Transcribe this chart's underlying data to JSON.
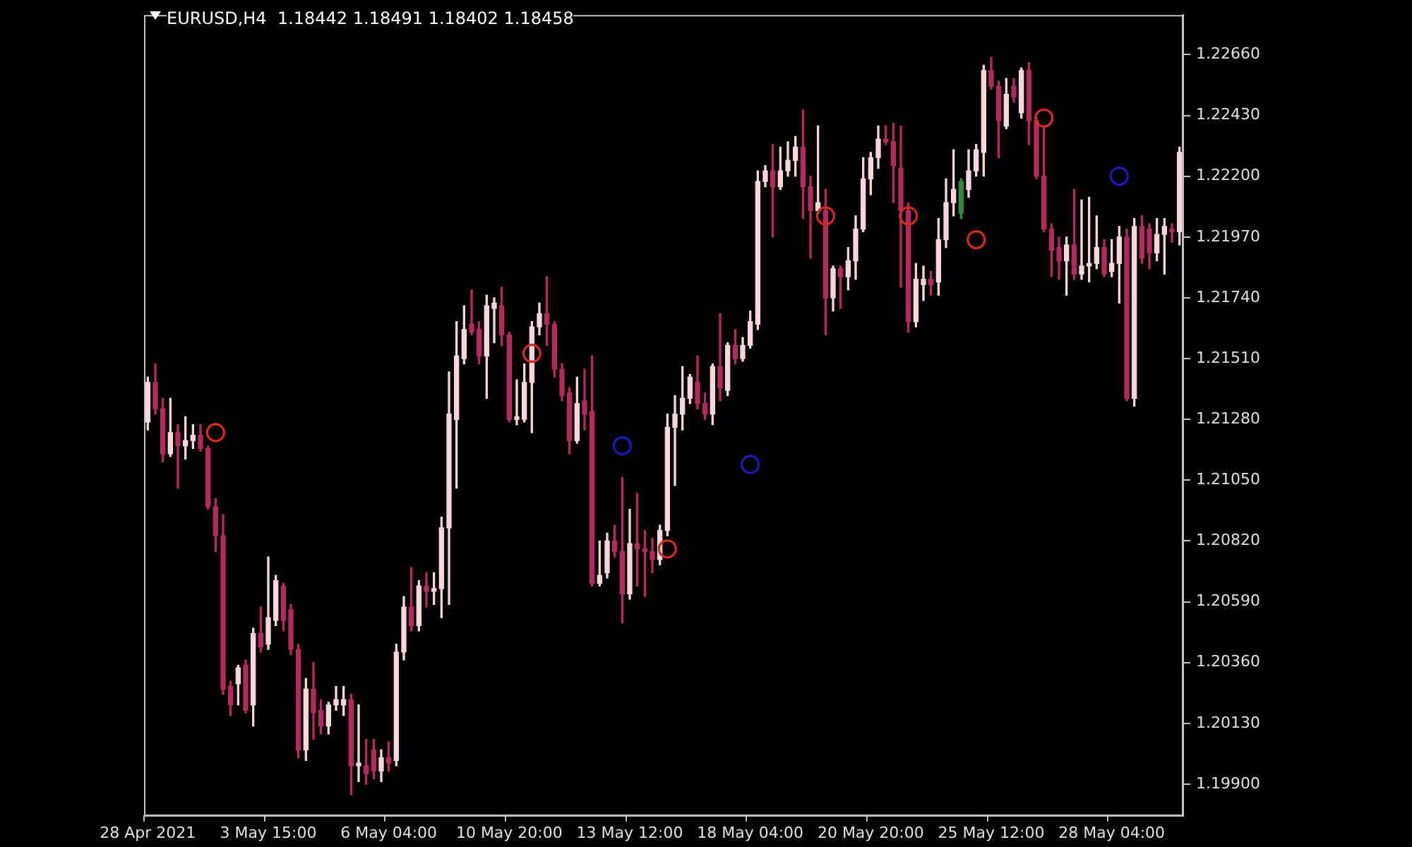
{
  "chart_data": {
    "type": "candlestick",
    "title": "EURUSD,H4  1.18442 1.18491 1.18402 1.18458",
    "categories": [
      "28 Apr 2021",
      null,
      null,
      null,
      null,
      null,
      null,
      null,
      null,
      null,
      null,
      null,
      null,
      null,
      null,
      null,
      "3 May 15:00",
      null,
      null,
      null,
      null,
      null,
      null,
      null,
      null,
      null,
      null,
      null,
      null,
      null,
      null,
      null,
      "6 May 04:00",
      null,
      null,
      null,
      null,
      null,
      null,
      null,
      null,
      null,
      null,
      null,
      null,
      null,
      null,
      null,
      "10 May 20:00",
      null,
      null,
      null,
      null,
      null,
      null,
      null,
      null,
      null,
      null,
      null,
      null,
      null,
      null,
      null,
      "13 May 12:00",
      null,
      null,
      null,
      null,
      null,
      null,
      null,
      null,
      null,
      null,
      null,
      null,
      null,
      null,
      null,
      "18 May 04:00",
      null,
      null,
      null,
      null,
      null,
      null,
      null,
      null,
      null,
      null,
      null,
      null,
      null,
      null,
      null,
      "20 May 20:00",
      null,
      null,
      null,
      null,
      null,
      null,
      null,
      null,
      null,
      null,
      null,
      null,
      null,
      null,
      null,
      "25 May 12:00",
      null,
      null,
      null,
      null,
      null,
      null,
      null,
      null,
      null,
      null,
      null,
      null,
      null,
      null,
      null,
      "28 May 04:00",
      null,
      null,
      null,
      null,
      null,
      null,
      null,
      null,
      null
    ],
    "ohlc": [
      [
        1.2127,
        1.2144,
        1.2124,
        1.2142
      ],
      [
        1.2142,
        1.2149,
        1.213,
        1.2132
      ],
      [
        1.2132,
        1.2136,
        1.2112,
        1.2115
      ],
      [
        1.2115,
        1.2136,
        1.2114,
        1.2123
      ],
      [
        1.2123,
        1.2126,
        1.2102,
        1.2118
      ],
      [
        1.2118,
        1.2129,
        1.2113,
        1.212
      ],
      [
        1.212,
        1.2126,
        1.2117,
        1.2122
      ],
      [
        1.2122,
        1.2126,
        1.2116,
        1.2117
      ],
      [
        1.2117,
        1.2118,
        1.2094,
        1.2095
      ],
      [
        1.2095,
        1.2098,
        1.2078,
        1.2084
      ],
      [
        1.2084,
        1.2092,
        1.2024,
        1.2026
      ],
      [
        1.2027,
        1.2029,
        1.2016,
        1.202
      ],
      [
        1.2028,
        1.2035,
        1.202,
        1.2034
      ],
      [
        1.2035,
        1.2037,
        1.2017,
        1.2018
      ],
      [
        1.202,
        1.2049,
        1.2012,
        1.2047
      ],
      [
        1.2047,
        1.2057,
        1.204,
        1.2042
      ],
      [
        1.2043,
        1.2076,
        1.2041,
        1.2053
      ],
      [
        1.2052,
        1.2069,
        1.205,
        1.2067
      ],
      [
        1.2065,
        1.2066,
        1.2048,
        1.2052
      ],
      [
        1.2056,
        1.2058,
        1.2039,
        1.2041
      ],
      [
        1.2041,
        1.2043,
        1.2,
        1.2003
      ],
      [
        1.2003,
        1.203,
        1.1999,
        1.2026
      ],
      [
        1.2026,
        1.2036,
        1.2007,
        1.2017
      ],
      [
        1.2018,
        1.2022,
        1.2009,
        1.2012
      ],
      [
        1.2012,
        1.2021,
        1.2009,
        1.202
      ],
      [
        1.202,
        1.2027,
        1.2018,
        1.2022
      ],
      [
        1.202,
        1.2027,
        1.2016,
        1.2022
      ],
      [
        1.2022,
        1.2024,
        1.1986,
        1.1997
      ],
      [
        1.1997,
        1.202,
        1.1991,
        1.1998
      ],
      [
        1.1997,
        1.2007,
        1.199,
        1.1994
      ],
      [
        1.2003,
        1.2007,
        1.1992,
        1.1995
      ],
      [
        1.1995,
        1.2003,
        1.1991,
        1.2
      ],
      [
        1.2,
        1.2006,
        1.1995,
        1.1998
      ],
      [
        1.1999,
        1.2043,
        1.1997,
        1.204
      ],
      [
        1.204,
        1.2061,
        1.2037,
        1.2057
      ],
      [
        1.2057,
        1.2072,
        1.2048,
        1.205
      ],
      [
        1.205,
        1.2067,
        1.2048,
        1.2065
      ],
      [
        1.2065,
        1.207,
        1.2057,
        1.2063
      ],
      [
        1.2063,
        1.207,
        1.2058,
        1.2064
      ],
      [
        1.2064,
        1.2091,
        1.2053,
        1.2087
      ],
      [
        1.2087,
        1.2146,
        1.2058,
        1.213
      ],
      [
        1.2128,
        1.2165,
        1.2102,
        1.2152
      ],
      [
        1.2151,
        1.2171,
        1.2149,
        1.2162
      ],
      [
        1.2164,
        1.2177,
        1.216,
        1.2161
      ],
      [
        1.2162,
        1.2165,
        1.2149,
        1.2152
      ],
      [
        1.2152,
        1.2175,
        1.2136,
        1.2171
      ],
      [
        1.217,
        1.2174,
        1.2157,
        1.2172
      ],
      [
        1.2171,
        1.2178,
        1.2156,
        1.216
      ],
      [
        1.216,
        1.2161,
        1.2127,
        1.2128
      ],
      [
        1.2128,
        1.2143,
        1.2126,
        1.2129
      ],
      [
        1.2128,
        1.2149,
        1.2127,
        1.2142
      ],
      [
        1.2142,
        1.2165,
        1.2123,
        1.2163
      ],
      [
        1.2163,
        1.2172,
        1.216,
        1.2168
      ],
      [
        1.2168,
        1.2182,
        1.2156,
        1.2164
      ],
      [
        1.2164,
        1.2165,
        1.2144,
        1.2147
      ],
      [
        1.2147,
        1.2149,
        1.2135,
        1.2137
      ],
      [
        1.2138,
        1.214,
        1.2115,
        1.212
      ],
      [
        1.212,
        1.2144,
        1.2119,
        1.2134
      ],
      [
        1.2135,
        1.2147,
        1.2124,
        1.213
      ],
      [
        1.2131,
        1.2152,
        1.2065,
        1.2066
      ],
      [
        1.2066,
        1.2082,
        1.2065,
        1.2069
      ],
      [
        1.207,
        1.2085,
        1.2068,
        1.2082
      ],
      [
        1.2082,
        1.2088,
        1.2076,
        1.2078
      ],
      [
        1.2078,
        1.2106,
        1.2051,
        1.2062
      ],
      [
        1.2062,
        1.2094,
        1.206,
        1.2081
      ],
      [
        1.2081,
        1.21,
        1.2065,
        1.2079
      ],
      [
        1.2079,
        1.2086,
        1.2061,
        1.2078
      ],
      [
        1.2078,
        1.2083,
        1.207,
        1.2075
      ],
      [
        1.2075,
        1.2088,
        1.2073,
        1.2086
      ],
      [
        1.2086,
        1.213,
        1.2084,
        1.2125
      ],
      [
        1.2125,
        1.2137,
        1.2103,
        1.213
      ],
      [
        1.213,
        1.2148,
        1.2124,
        1.2136
      ],
      [
        1.2136,
        1.2145,
        1.2134,
        1.2144
      ],
      [
        1.2142,
        1.2152,
        1.2132,
        1.2134
      ],
      [
        1.2134,
        1.2138,
        1.2128,
        1.213
      ],
      [
        1.213,
        1.2149,
        1.2126,
        1.2148
      ],
      [
        1.2148,
        1.2168,
        1.2135,
        1.214
      ],
      [
        1.2139,
        1.2157,
        1.2137,
        1.2156
      ],
      [
        1.2156,
        1.2162,
        1.2149,
        1.2151
      ],
      [
        1.2151,
        1.2159,
        1.215,
        1.2156
      ],
      [
        1.2156,
        1.2169,
        1.2155,
        1.2165
      ],
      [
        1.2164,
        1.2222,
        1.2162,
        1.2218
      ],
      [
        1.2218,
        1.2224,
        1.2216,
        1.2222
      ],
      [
        1.2222,
        1.2232,
        1.2197,
        1.2216
      ],
      [
        1.2216,
        1.2231,
        1.2215,
        1.2222
      ],
      [
        1.2222,
        1.2233,
        1.222,
        1.2226
      ],
      [
        1.2226,
        1.2235,
        1.222,
        1.2231
      ],
      [
        1.2231,
        1.2245,
        1.2204,
        1.2216
      ],
      [
        1.2216,
        1.222,
        1.2189,
        1.2207
      ],
      [
        1.2207,
        1.2239,
        1.2206,
        1.221
      ],
      [
        1.2207,
        1.2215,
        1.216,
        1.2174
      ],
      [
        1.2174,
        1.2186,
        1.2169,
        1.2185
      ],
      [
        1.2185,
        1.2186,
        1.217,
        1.2182
      ],
      [
        1.2182,
        1.2193,
        1.2177,
        1.2188
      ],
      [
        1.2188,
        1.2205,
        1.2181,
        1.22
      ],
      [
        1.22,
        1.2227,
        1.2199,
        1.2219
      ],
      [
        1.2219,
        1.2229,
        1.2213,
        1.2227
      ],
      [
        1.2227,
        1.2239,
        1.2223,
        1.2234
      ],
      [
        1.2234,
        1.2239,
        1.2232,
        1.2233
      ],
      [
        1.2233,
        1.224,
        1.221,
        1.2224
      ],
      [
        1.2223,
        1.2239,
        1.2178,
        1.2207
      ],
      [
        1.2207,
        1.221,
        1.2161,
        1.2165
      ],
      [
        1.2165,
        1.2187,
        1.2163,
        1.2181
      ],
      [
        1.2179,
        1.2186,
        1.2173,
        1.2181
      ],
      [
        1.2181,
        1.2184,
        1.2175,
        1.2179
      ],
      [
        1.218,
        1.2204,
        1.2175,
        1.2196
      ],
      [
        1.2196,
        1.2219,
        1.2193,
        1.221
      ],
      [
        1.221,
        1.223,
        1.2205,
        1.2215
      ],
      [
        1.2206,
        1.2219,
        1.2204,
        1.2218
      ],
      [
        1.2215,
        1.223,
        1.2212,
        1.2222
      ],
      [
        1.2222,
        1.2232,
        1.222,
        1.223
      ],
      [
        1.2229,
        1.2262,
        1.222,
        1.226
      ],
      [
        1.226,
        1.2265,
        1.2253,
        1.2254
      ],
      [
        1.2254,
        1.2256,
        1.2227,
        1.2241
      ],
      [
        1.2239,
        1.2257,
        1.2238,
        1.2251
      ],
      [
        1.2254,
        1.2257,
        1.2248,
        1.225
      ],
      [
        1.2244,
        1.2261,
        1.2242,
        1.226
      ],
      [
        1.226,
        1.2263,
        1.2232,
        1.2241
      ],
      [
        1.2241,
        1.2242,
        1.2219,
        1.222
      ],
      [
        1.222,
        1.2239,
        1.2199,
        1.22
      ],
      [
        1.22,
        1.2202,
        1.2182,
        1.2192
      ],
      [
        1.2193,
        1.2197,
        1.2181,
        1.2188
      ],
      [
        1.2188,
        1.2197,
        1.2175,
        1.2194
      ],
      [
        1.2194,
        1.2215,
        1.2181,
        1.2183
      ],
      [
        1.2183,
        1.2211,
        1.2181,
        1.2186
      ],
      [
        1.2186,
        1.2212,
        1.218,
        1.2187
      ],
      [
        1.2187,
        1.2205,
        1.2185,
        1.2193
      ],
      [
        1.2193,
        1.2196,
        1.2182,
        1.2183
      ],
      [
        1.2184,
        1.2196,
        1.2182,
        1.2187
      ],
      [
        1.2187,
        1.2201,
        1.2172,
        1.2197
      ],
      [
        1.2197,
        1.22,
        1.2135,
        1.2136
      ],
      [
        1.2136,
        1.2204,
        1.2133,
        1.2201
      ],
      [
        1.2201,
        1.2205,
        1.2187,
        1.2189
      ],
      [
        1.22,
        1.2202,
        1.2185,
        1.2191
      ],
      [
        1.2191,
        1.2204,
        1.2188,
        1.2198
      ],
      [
        1.2198,
        1.2204,
        1.2183,
        1.2201
      ],
      [
        1.22,
        1.2202,
        1.2195,
        1.2199
      ],
      [
        1.2199,
        1.2231,
        1.2194,
        1.2229
      ]
    ],
    "colors": [
      "#f6d6da",
      "#b22a5e",
      "#b22a5e",
      "#f6d6da",
      "#b22a5e",
      "#f6d6da",
      "#f6d6da",
      "#b22a5e",
      "#b22a5e",
      "#b22a5e",
      "#b22a5e",
      "#b22a5e",
      "#f6d6da",
      "#b22a5e",
      "#f6d6da",
      "#b22a5e",
      "#f6d6da",
      "#f6d6da",
      "#b22a5e",
      "#b22a5e",
      "#b22a5e",
      "#f6d6da",
      "#b22a5e",
      "#b22a5e",
      "#f6d6da",
      "#f6d6da",
      "#f6d6da",
      "#b22a5e",
      "#f6d6da",
      "#b22a5e",
      "#b22a5e",
      "#f6d6da",
      "#b22a5e",
      "#f6d6da",
      "#f6d6da",
      "#b22a5e",
      "#f6d6da",
      "#b22a5e",
      "#f6d6da",
      "#f6d6da",
      "#f6d6da",
      "#f6d6da",
      "#f6d6da",
      "#b22a5e",
      "#b22a5e",
      "#f6d6da",
      "#f6d6da",
      "#b22a5e",
      "#b22a5e",
      "#f6d6da",
      "#f6d6da",
      "#f6d6da",
      "#f6d6da",
      "#b22a5e",
      "#b22a5e",
      "#b22a5e",
      "#b22a5e",
      "#f6d6da",
      "#b22a5e",
      "#b22a5e",
      "#f6d6da",
      "#f6d6da",
      "#b22a5e",
      "#b22a5e",
      "#f6d6da",
      "#b22a5e",
      "#b22a5e",
      "#b22a5e",
      "#f6d6da",
      "#f6d6da",
      "#f6d6da",
      "#f6d6da",
      "#f6d6da",
      "#b22a5e",
      "#b22a5e",
      "#f6d6da",
      "#b22a5e",
      "#f6d6da",
      "#b22a5e",
      "#f6d6da",
      "#f6d6da",
      "#f6d6da",
      "#f6d6da",
      "#b22a5e",
      "#f6d6da",
      "#f6d6da",
      "#f6d6da",
      "#b22a5e",
      "#b22a5e",
      "#f6d6da",
      "#b22a5e",
      "#f6d6da",
      "#b22a5e",
      "#f6d6da",
      "#f6d6da",
      "#f6d6da",
      "#f6d6da",
      "#f6d6da",
      "#b22a5e",
      "#b22a5e",
      "#b22a5e",
      "#b22a5e",
      "#f6d6da",
      "#f6d6da",
      "#b22a5e",
      "#f6d6da",
      "#f6d6da",
      "#f6d6da",
      "#2f8a3c",
      "#f6d6da",
      "#f6d6da",
      "#f6d6da",
      "#b22a5e",
      "#b22a5e",
      "#f6d6da",
      "#b22a5e",
      "#f6d6da",
      "#b22a5e",
      "#b22a5e",
      "#b22a5e",
      "#b22a5e",
      "#b22a5e",
      "#f6d6da",
      "#b22a5e",
      "#f6d6da",
      "#f6d6da",
      "#f6d6da",
      "#b22a5e",
      "#f6d6da",
      "#f6d6da",
      "#b22a5e",
      "#f6d6da",
      "#b22a5e",
      "#b22a5e",
      "#f6d6da",
      "#f6d6da",
      "#b22a5e",
      "#f6d6da"
    ],
    "series": [
      {
        "type": "scatter",
        "color": "#d42a20",
        "values": [
          null,
          null,
          null,
          null,
          null,
          null,
          null,
          null,
          null,
          1.2123,
          null,
          null,
          null,
          null,
          null,
          null,
          null,
          null,
          null,
          null,
          null,
          null,
          null,
          null,
          null,
          null,
          null,
          null,
          null,
          null,
          null,
          null,
          null,
          null,
          null,
          null,
          null,
          null,
          null,
          null,
          null,
          null,
          null,
          null,
          null,
          null,
          null,
          null,
          null,
          null,
          null,
          1.2153,
          null,
          null,
          null,
          null,
          null,
          null,
          null,
          null,
          null,
          null,
          null,
          null,
          null,
          null,
          null,
          null,
          null,
          1.2079,
          null,
          null,
          null,
          null,
          null,
          null,
          null,
          null,
          null,
          null,
          null,
          null,
          null,
          null,
          null,
          null,
          null,
          null,
          null,
          null,
          1.2205,
          null,
          null,
          null,
          null,
          null,
          null,
          null,
          null,
          null,
          null,
          1.2205,
          null,
          null,
          null,
          null,
          null,
          null,
          null,
          null,
          1.2196,
          null,
          null,
          null,
          null,
          null,
          null,
          null,
          null,
          1.2242,
          null,
          null,
          null,
          null,
          null,
          null,
          null,
          null,
          null,
          null,
          null,
          null,
          null,
          null,
          null,
          null,
          null,
          null
        ],
        "marker": "circle"
      },
      {
        "type": "scatter",
        "color": "#1a1ab8",
        "values": [
          null,
          null,
          null,
          null,
          null,
          null,
          null,
          null,
          null,
          null,
          null,
          null,
          null,
          null,
          null,
          null,
          null,
          null,
          null,
          null,
          null,
          null,
          null,
          null,
          null,
          null,
          null,
          null,
          null,
          null,
          null,
          null,
          null,
          null,
          null,
          null,
          null,
          null,
          null,
          null,
          null,
          null,
          null,
          null,
          null,
          null,
          null,
          null,
          null,
          null,
          null,
          null,
          null,
          null,
          null,
          null,
          null,
          null,
          null,
          null,
          null,
          null,
          null,
          1.2118,
          null,
          null,
          null,
          null,
          null,
          null,
          null,
          null,
          null,
          null,
          null,
          null,
          null,
          null,
          null,
          null,
          1.2111,
          null,
          null,
          null,
          null,
          null,
          null,
          null,
          null,
          null,
          null,
          null,
          null,
          null,
          null,
          null,
          null,
          null,
          null,
          null,
          null,
          null,
          null,
          null,
          null,
          null,
          null,
          null,
          null,
          null,
          null,
          null,
          null,
          null,
          null,
          null,
          null,
          null,
          null,
          null,
          null,
          null,
          null,
          null,
          null,
          null,
          null,
          null,
          null,
          1.222,
          null,
          null,
          null,
          null,
          null,
          null,
          null,
          null
        ]
      }
    ],
    "marker": "circle",
    "ylim": [
      1.1978,
      1.2281
    ],
    "yticks": [
      {
        "value": 1.199,
        "label": "1.19900"
      },
      {
        "value": 1.2013,
        "label": "1.20130"
      },
      {
        "value": 1.2036,
        "label": "1.20360"
      },
      {
        "value": 1.2059,
        "label": "1.20590"
      },
      {
        "value": 1.2082,
        "label": "1.20820"
      },
      {
        "value": 1.2105,
        "label": "1.21050"
      },
      {
        "value": 1.2128,
        "label": "1.21280"
      },
      {
        "value": 1.2151,
        "label": "1.21510"
      },
      {
        "value": 1.2174,
        "label": "1.21740"
      },
      {
        "value": 1.2197,
        "label": "1.21970"
      },
      {
        "value": 1.222,
        "label": "1.22200"
      },
      {
        "value": 1.2243,
        "label": "1.22430"
      },
      {
        "value": 1.2266,
        "label": "1.22660"
      }
    ]
  }
}
